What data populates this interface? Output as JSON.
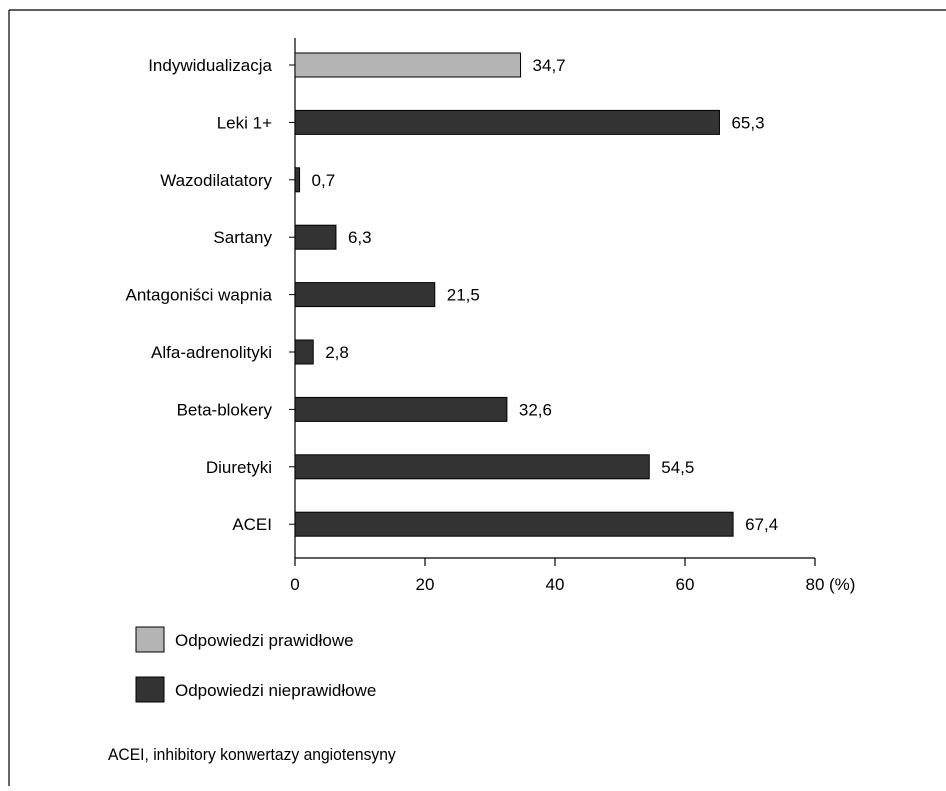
{
  "chart_data": {
    "type": "bar",
    "orientation": "horizontal",
    "categories": [
      "Indywidualizacja",
      "Leki 1+",
      "Wazodilatatory",
      "Sartany",
      "Antagoniści wapnia",
      "Alfa-adrenolityki",
      "Beta-blokery",
      "Diuretyki",
      "ACEI"
    ],
    "values": [
      34.7,
      65.3,
      0.7,
      6.3,
      21.5,
      2.8,
      32.6,
      54.5,
      67.4
    ],
    "value_labels": [
      "34,7",
      "65,3",
      "0,7",
      "6,3",
      "21,5",
      "2,8",
      "32,6",
      "54,5",
      "67,4"
    ],
    "bar_series": [
      0,
      1,
      1,
      1,
      1,
      1,
      1,
      1,
      1
    ],
    "series": [
      {
        "name": "Odpowiedzi prawidłowe",
        "color": "#b4b4b4"
      },
      {
        "name": "Odpowiedzi nieprawidłowe",
        "color": "#333333"
      }
    ],
    "x_ticks": [
      "0",
      "20",
      "40",
      "60",
      "80"
    ],
    "x_unit": "(%)",
    "xlim": [
      0,
      80
    ],
    "grid": false,
    "legend_position": "bottom-left"
  },
  "footnote": "ACEI, inhibitory konwertazy angiotensyny"
}
